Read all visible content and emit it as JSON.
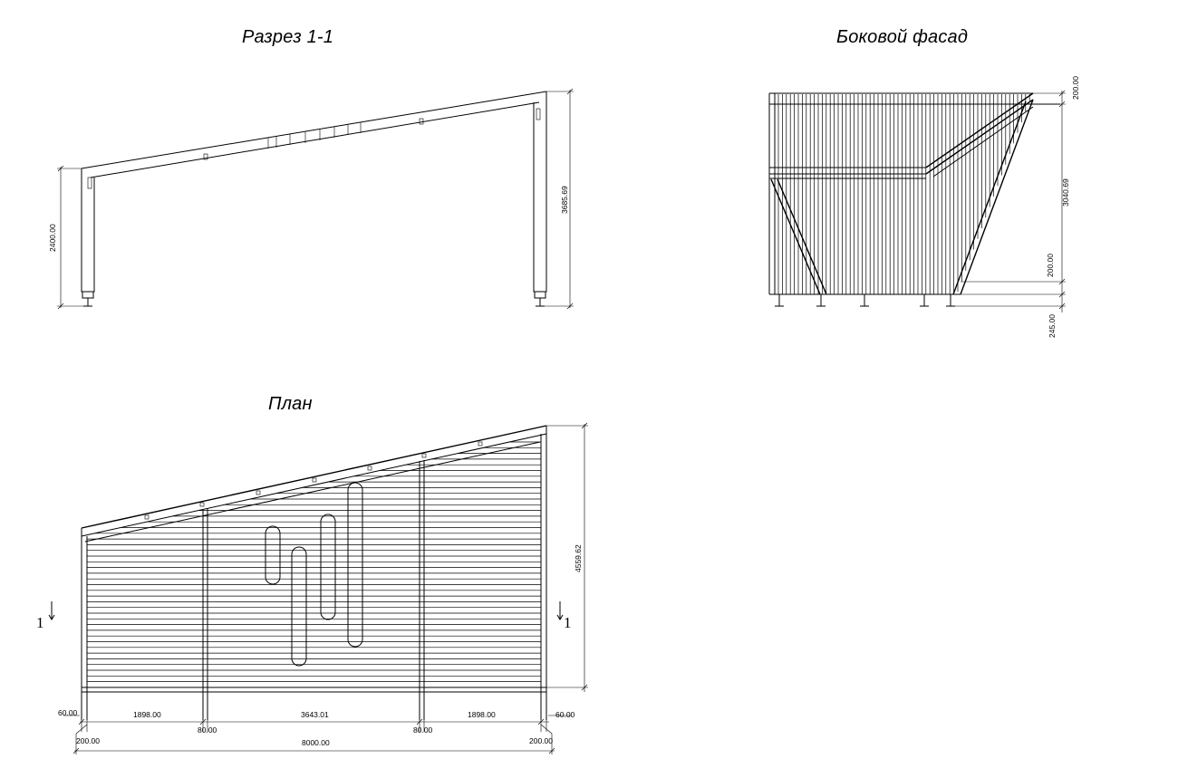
{
  "titles": {
    "section": "Разрез 1-1",
    "side_facade": "Боковой фасад",
    "plan": "План"
  },
  "section_dims": {
    "left_height": "2400.00",
    "right_height": "3685.69"
  },
  "side_dims": {
    "top": "200.00",
    "main": "3040.69",
    "mid": "200.00",
    "bottom": "245.00"
  },
  "plan_dims": {
    "depth": "4559.62",
    "edge_left": "60.00",
    "edge_right": "60.00",
    "bay_left": "1898.00",
    "bay_mid": "3643.01",
    "bay_right": "1898.00",
    "post_left": "80.00",
    "post_right": "80.00",
    "offset_left": "200.00",
    "offset_right": "200.00",
    "total": "8000.00"
  },
  "section_marks": {
    "left": "1",
    "right": "1"
  }
}
